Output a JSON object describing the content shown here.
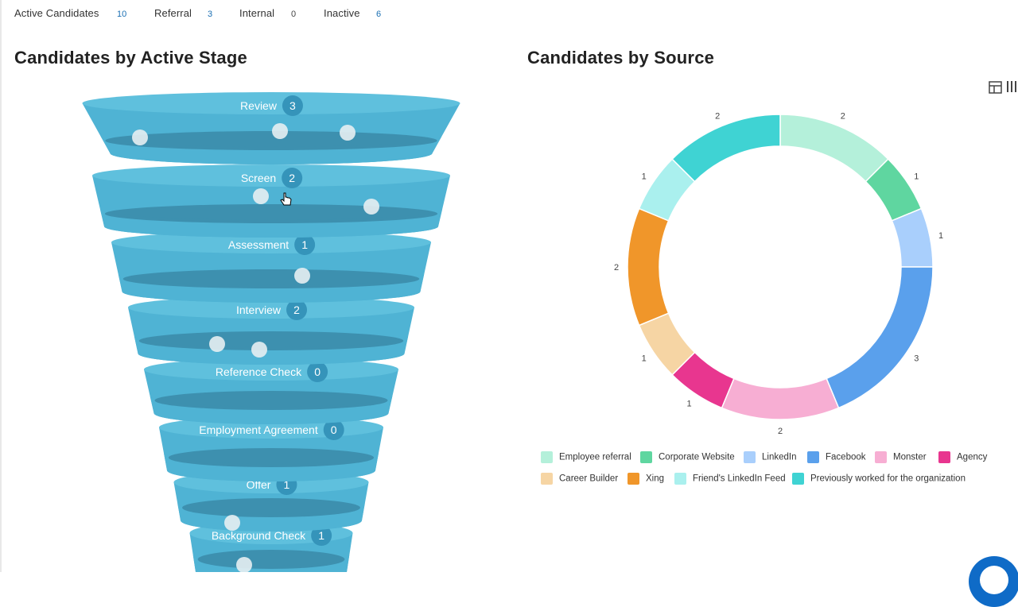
{
  "stats": [
    {
      "label": "Active Candidates",
      "count": "10",
      "count_color": "#1a6fb3"
    },
    {
      "label": "Referral",
      "count": "3",
      "count_color": "#1a6fb3"
    },
    {
      "label": "Internal",
      "count": "0",
      "count_color": "#444444"
    },
    {
      "label": "Inactive",
      "count": "6",
      "count_color": "#1a6fb3"
    }
  ],
  "stage_panel": {
    "title": "Candidates by Active Stage"
  },
  "source_panel": {
    "title": "Candidates by Source"
  },
  "colors": {
    "funnel_body": "#4fb3d4",
    "funnel_dark": "#3a8aa8",
    "funnel_top": "#5fc0dd",
    "badge": "#3594ba"
  },
  "chart_data": [
    {
      "type": "funnel",
      "title": "Candidates by Active Stage",
      "categories": [
        "Review",
        "Screen",
        "Assessment",
        "Interview",
        "Reference Check",
        "Employment Agreement",
        "Offer",
        "Background Check"
      ],
      "values": [
        3,
        2,
        1,
        2,
        0,
        0,
        1,
        1
      ]
    },
    {
      "type": "pie",
      "title": "Candidates by Source",
      "donut": true,
      "slices": [
        {
          "label": "Employee referral",
          "value": 2,
          "color": "#b4f0da"
        },
        {
          "label": "Corporate Website",
          "value": 1,
          "color": "#5fd6a0"
        },
        {
          "label": "LinkedIn",
          "value": 1,
          "color": "#a9cffc"
        },
        {
          "label": "Facebook",
          "value": 3,
          "color": "#5aa0ec"
        },
        {
          "label": "Monster",
          "value": 2,
          "color": "#f7aed3"
        },
        {
          "label": "Agency",
          "value": 1,
          "color": "#e8368f"
        },
        {
          "label": "Career Builder",
          "value": 1,
          "color": "#f6d5a4"
        },
        {
          "label": "Xing",
          "value": 2,
          "color": "#f0962a"
        },
        {
          "label": "Friend's LinkedIn Feed",
          "value": 1,
          "color": "#aaf0ee"
        },
        {
          "label": "Previously worked for the organization",
          "value": 2,
          "color": "#3fd3d3"
        }
      ]
    }
  ],
  "icons": {
    "layout": "table-layout-icon",
    "cursor": "hand-cursor-icon",
    "chat": "chat-launcher-icon"
  }
}
